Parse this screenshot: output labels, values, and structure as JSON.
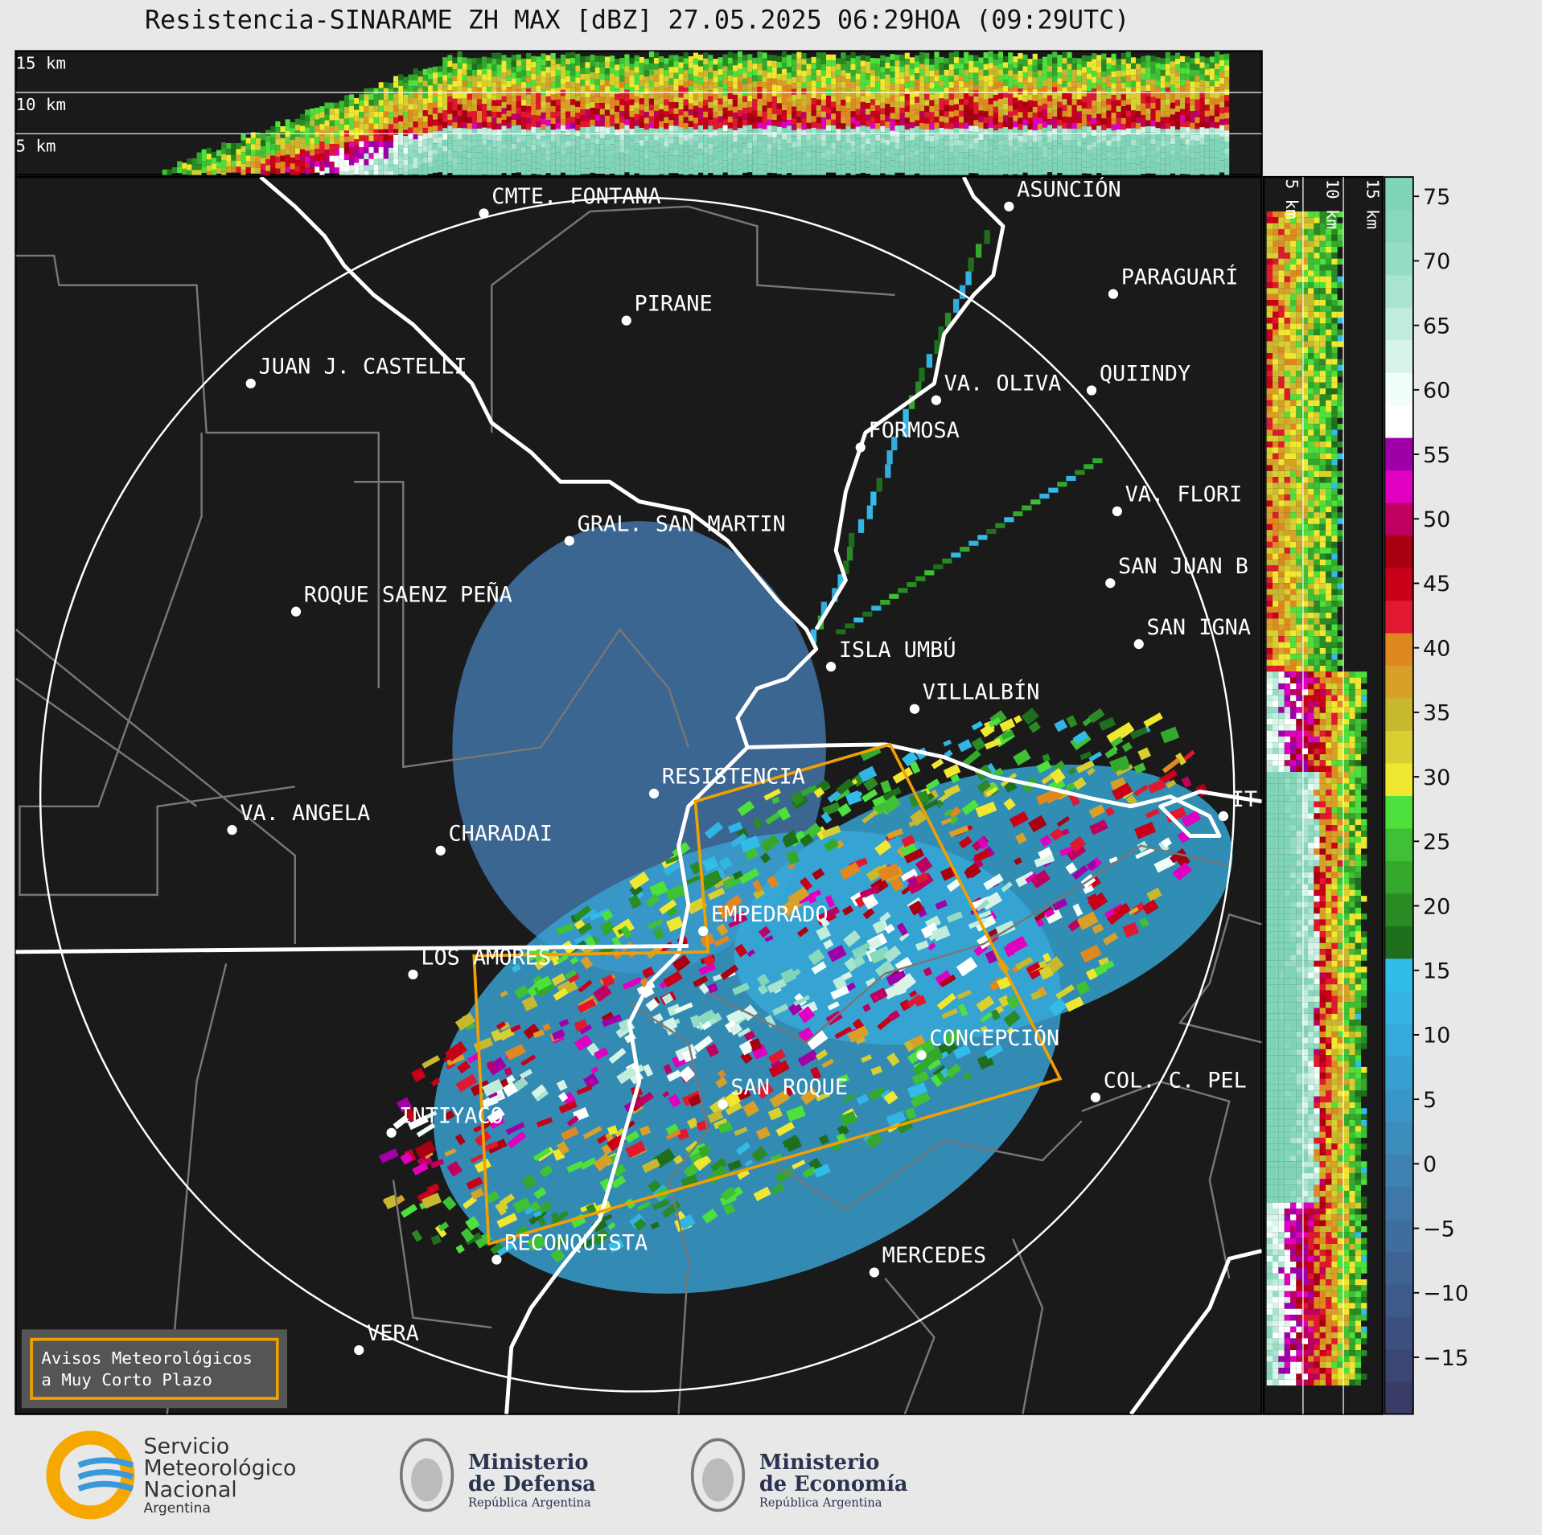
{
  "title": "Resistencia-SINARAME ZH MAX [dBZ] 27.05.2025 06:29HOA (09:29UTC)",
  "top_section": {
    "labels": [
      "15 km",
      "10 km",
      "5 km"
    ]
  },
  "side_section": {
    "labels": [
      "5 km",
      "10 km",
      "15 km"
    ]
  },
  "cities": [
    {
      "name": "CMTE. FONTANA"
    },
    {
      "name": "PIRANE"
    },
    {
      "name": "JUAN J. CASTELLI"
    },
    {
      "name": "ASUNCIÓN"
    },
    {
      "name": "PARAGUARÍ"
    },
    {
      "name": "VA. OLIVA"
    },
    {
      "name": "QUIINDY"
    },
    {
      "name": "FORMOSA"
    },
    {
      "name": "VA. FLORI"
    },
    {
      "name": "GRAL. SAN MARTIN"
    },
    {
      "name": "SAN JUAN B"
    },
    {
      "name": "ROQUE SAENZ PEÑA"
    },
    {
      "name": "SAN IGNA"
    },
    {
      "name": "ISLA UMBÚ"
    },
    {
      "name": "VILLALBÍN"
    },
    {
      "name": "RESISTENCIA"
    },
    {
      "name": "IT"
    },
    {
      "name": "VA. ANGELA"
    },
    {
      "name": "CHARADAI"
    },
    {
      "name": "EMPEDRADO"
    },
    {
      "name": "LOS AMORES"
    },
    {
      "name": "CONCEPCIÓN"
    },
    {
      "name": "COL. C. PEL"
    },
    {
      "name": "SAN ROQUE"
    },
    {
      "name": "INTIYACO"
    },
    {
      "name": "RECONQUISTA"
    },
    {
      "name": "MERCEDES"
    },
    {
      "name": "VERA"
    }
  ],
  "warning_box": {
    "lines": [
      "Avisos Meteorológicos",
      "a Muy Corto Plazo"
    ]
  },
  "colorbar": {
    "lim": [
      -19.4,
      76.5
    ],
    "ticks": [
      75,
      70,
      65,
      60,
      55,
      50,
      45,
      40,
      35,
      30,
      25,
      20,
      15,
      10,
      5,
      0,
      {
        "value": -5,
        "label": "−5"
      },
      {
        "value": -10,
        "label": "−10"
      },
      {
        "value": -15,
        "label": "−15"
      }
    ],
    "colors": [
      "#3a3c68",
      "#3c4674",
      "#3d5080",
      "#3e5a8a",
      "#3f6494",
      "#3f6e9e",
      "#3f78a8",
      "#3e82b2",
      "#3c8cbc",
      "#3a96c6",
      "#38a0d0",
      "#36aada",
      "#34b4e2",
      "#32bce8",
      "#1f6e1e",
      "#2a8a24",
      "#34a82c",
      "#40c034",
      "#4ee03c",
      "#f0e830",
      "#d8d030",
      "#c8b830",
      "#d8a028",
      "#e08820",
      "#e01830",
      "#c80018",
      "#a80010",
      "#c00060",
      "#e000c0",
      "#a000a8",
      "#ffffff",
      "#f0fff8",
      "#d8f4e8",
      "#c0ecdc",
      "#a8e4d0",
      "#94dcc4",
      "#88d8bc",
      "#80d4b8"
    ]
  },
  "logos": {
    "smn": [
      "Servicio",
      "Meteorológico",
      "Nacional",
      "Argentina"
    ],
    "defensa": [
      "Ministerio",
      "de Defensa",
      "República Argentina"
    ],
    "economia": [
      "Ministerio",
      "de Economía",
      "República Argentina"
    ]
  }
}
